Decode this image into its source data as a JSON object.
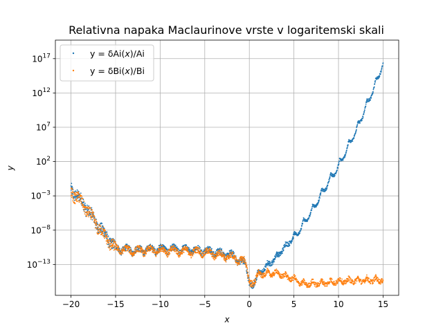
{
  "chart_data": {
    "type": "scatter",
    "title": "Relativna napaka Maclaurinove vrste v logaritemski skali",
    "xlabel": "x",
    "ylabel": "y",
    "xlim": [
      -21.75,
      16.75
    ],
    "ylim_log10": [
      -17.5,
      19.7
    ],
    "y_scale": "log",
    "grid": true,
    "legend_position": "top-left",
    "x_ticks": [
      {
        "value": -20,
        "label": "−20"
      },
      {
        "value": -15,
        "label": "−15"
      },
      {
        "value": -10,
        "label": "−10"
      },
      {
        "value": -5,
        "label": "−5"
      },
      {
        "value": 0,
        "label": "0"
      },
      {
        "value": 5,
        "label": "5"
      },
      {
        "value": 10,
        "label": "10"
      },
      {
        "value": 15,
        "label": "15"
      }
    ],
    "y_ticks": [
      {
        "exp": -13,
        "base": "10",
        "power": "−13"
      },
      {
        "exp": -8,
        "base": "10",
        "power": "−8"
      },
      {
        "exp": -3,
        "base": "10",
        "power": "−3"
      },
      {
        "exp": 2,
        "base": "10",
        "power": "2"
      },
      {
        "exp": 7,
        "base": "10",
        "power": "7"
      },
      {
        "exp": 12,
        "base": "10",
        "power": "12"
      },
      {
        "exp": 17,
        "base": "10",
        "power": "17"
      }
    ],
    "series": [
      {
        "name": "y = δAi(x)/Ai",
        "legend_pre": "y = δAi(",
        "legend_var": "x",
        "legend_post": ")/Ai",
        "color": "#1f77b4",
        "marker": "point",
        "x_range": [
          -20,
          15
        ],
        "profile_log10_y": [
          {
            "x": -20.0,
            "y": -2.5
          },
          {
            "x": -19.0,
            "y": -4.0
          },
          {
            "x": -18.0,
            "y": -5.8
          },
          {
            "x": -17.0,
            "y": -7.8
          },
          {
            "x": -16.0,
            "y": -9.5
          },
          {
            "x": -15.0,
            "y": -11.2
          },
          {
            "x": -13.0,
            "y": -11.5
          },
          {
            "x": -10.0,
            "y": -11.3
          },
          {
            "x": -5.0,
            "y": -11.5
          },
          {
            "x": -2.0,
            "y": -12.2
          },
          {
            "x": -0.5,
            "y": -13.5
          },
          {
            "x": 0.0,
            "y": -15.7
          },
          {
            "x": 1.0,
            "y": -14.0
          },
          {
            "x": 3.0,
            "y": -11.5
          },
          {
            "x": 5.0,
            "y": -8.5
          },
          {
            "x": 7.0,
            "y": -4.5
          },
          {
            "x": 9.0,
            "y": 0.0
          },
          {
            "x": 10.0,
            "y": 2.0
          },
          {
            "x": 12.0,
            "y": 7.3
          },
          {
            "x": 14.0,
            "y": 13.5
          },
          {
            "x": 15.0,
            "y": 17.0
          }
        ]
      },
      {
        "name": "y = δBi(x)/Bi",
        "legend_pre": "y = δBi(",
        "legend_var": "x",
        "legend_post": ")/Bi",
        "color": "#ff7f0e",
        "marker": "point",
        "x_range": [
          -20,
          15
        ],
        "profile_log10_y": [
          {
            "x": -20.0,
            "y": -3.0
          },
          {
            "x": -19.0,
            "y": -4.2
          },
          {
            "x": -18.0,
            "y": -6.0
          },
          {
            "x": -17.0,
            "y": -8.0
          },
          {
            "x": -16.0,
            "y": -9.8
          },
          {
            "x": -15.0,
            "y": -11.3
          },
          {
            "x": -13.0,
            "y": -11.6
          },
          {
            "x": -10.0,
            "y": -11.5
          },
          {
            "x": -5.0,
            "y": -11.8
          },
          {
            "x": -2.0,
            "y": -12.5
          },
          {
            "x": -0.5,
            "y": -13.2
          },
          {
            "x": 0.0,
            "y": -15.5
          },
          {
            "x": 1.0,
            "y": -14.0
          },
          {
            "x": 3.0,
            "y": -13.8
          },
          {
            "x": 5.0,
            "y": -14.7
          },
          {
            "x": 6.0,
            "y": -15.4
          },
          {
            "x": 8.0,
            "y": -15.3
          },
          {
            "x": 10.0,
            "y": -15.0
          },
          {
            "x": 12.0,
            "y": -14.9
          },
          {
            "x": 15.0,
            "y": -14.8
          }
        ]
      }
    ]
  }
}
